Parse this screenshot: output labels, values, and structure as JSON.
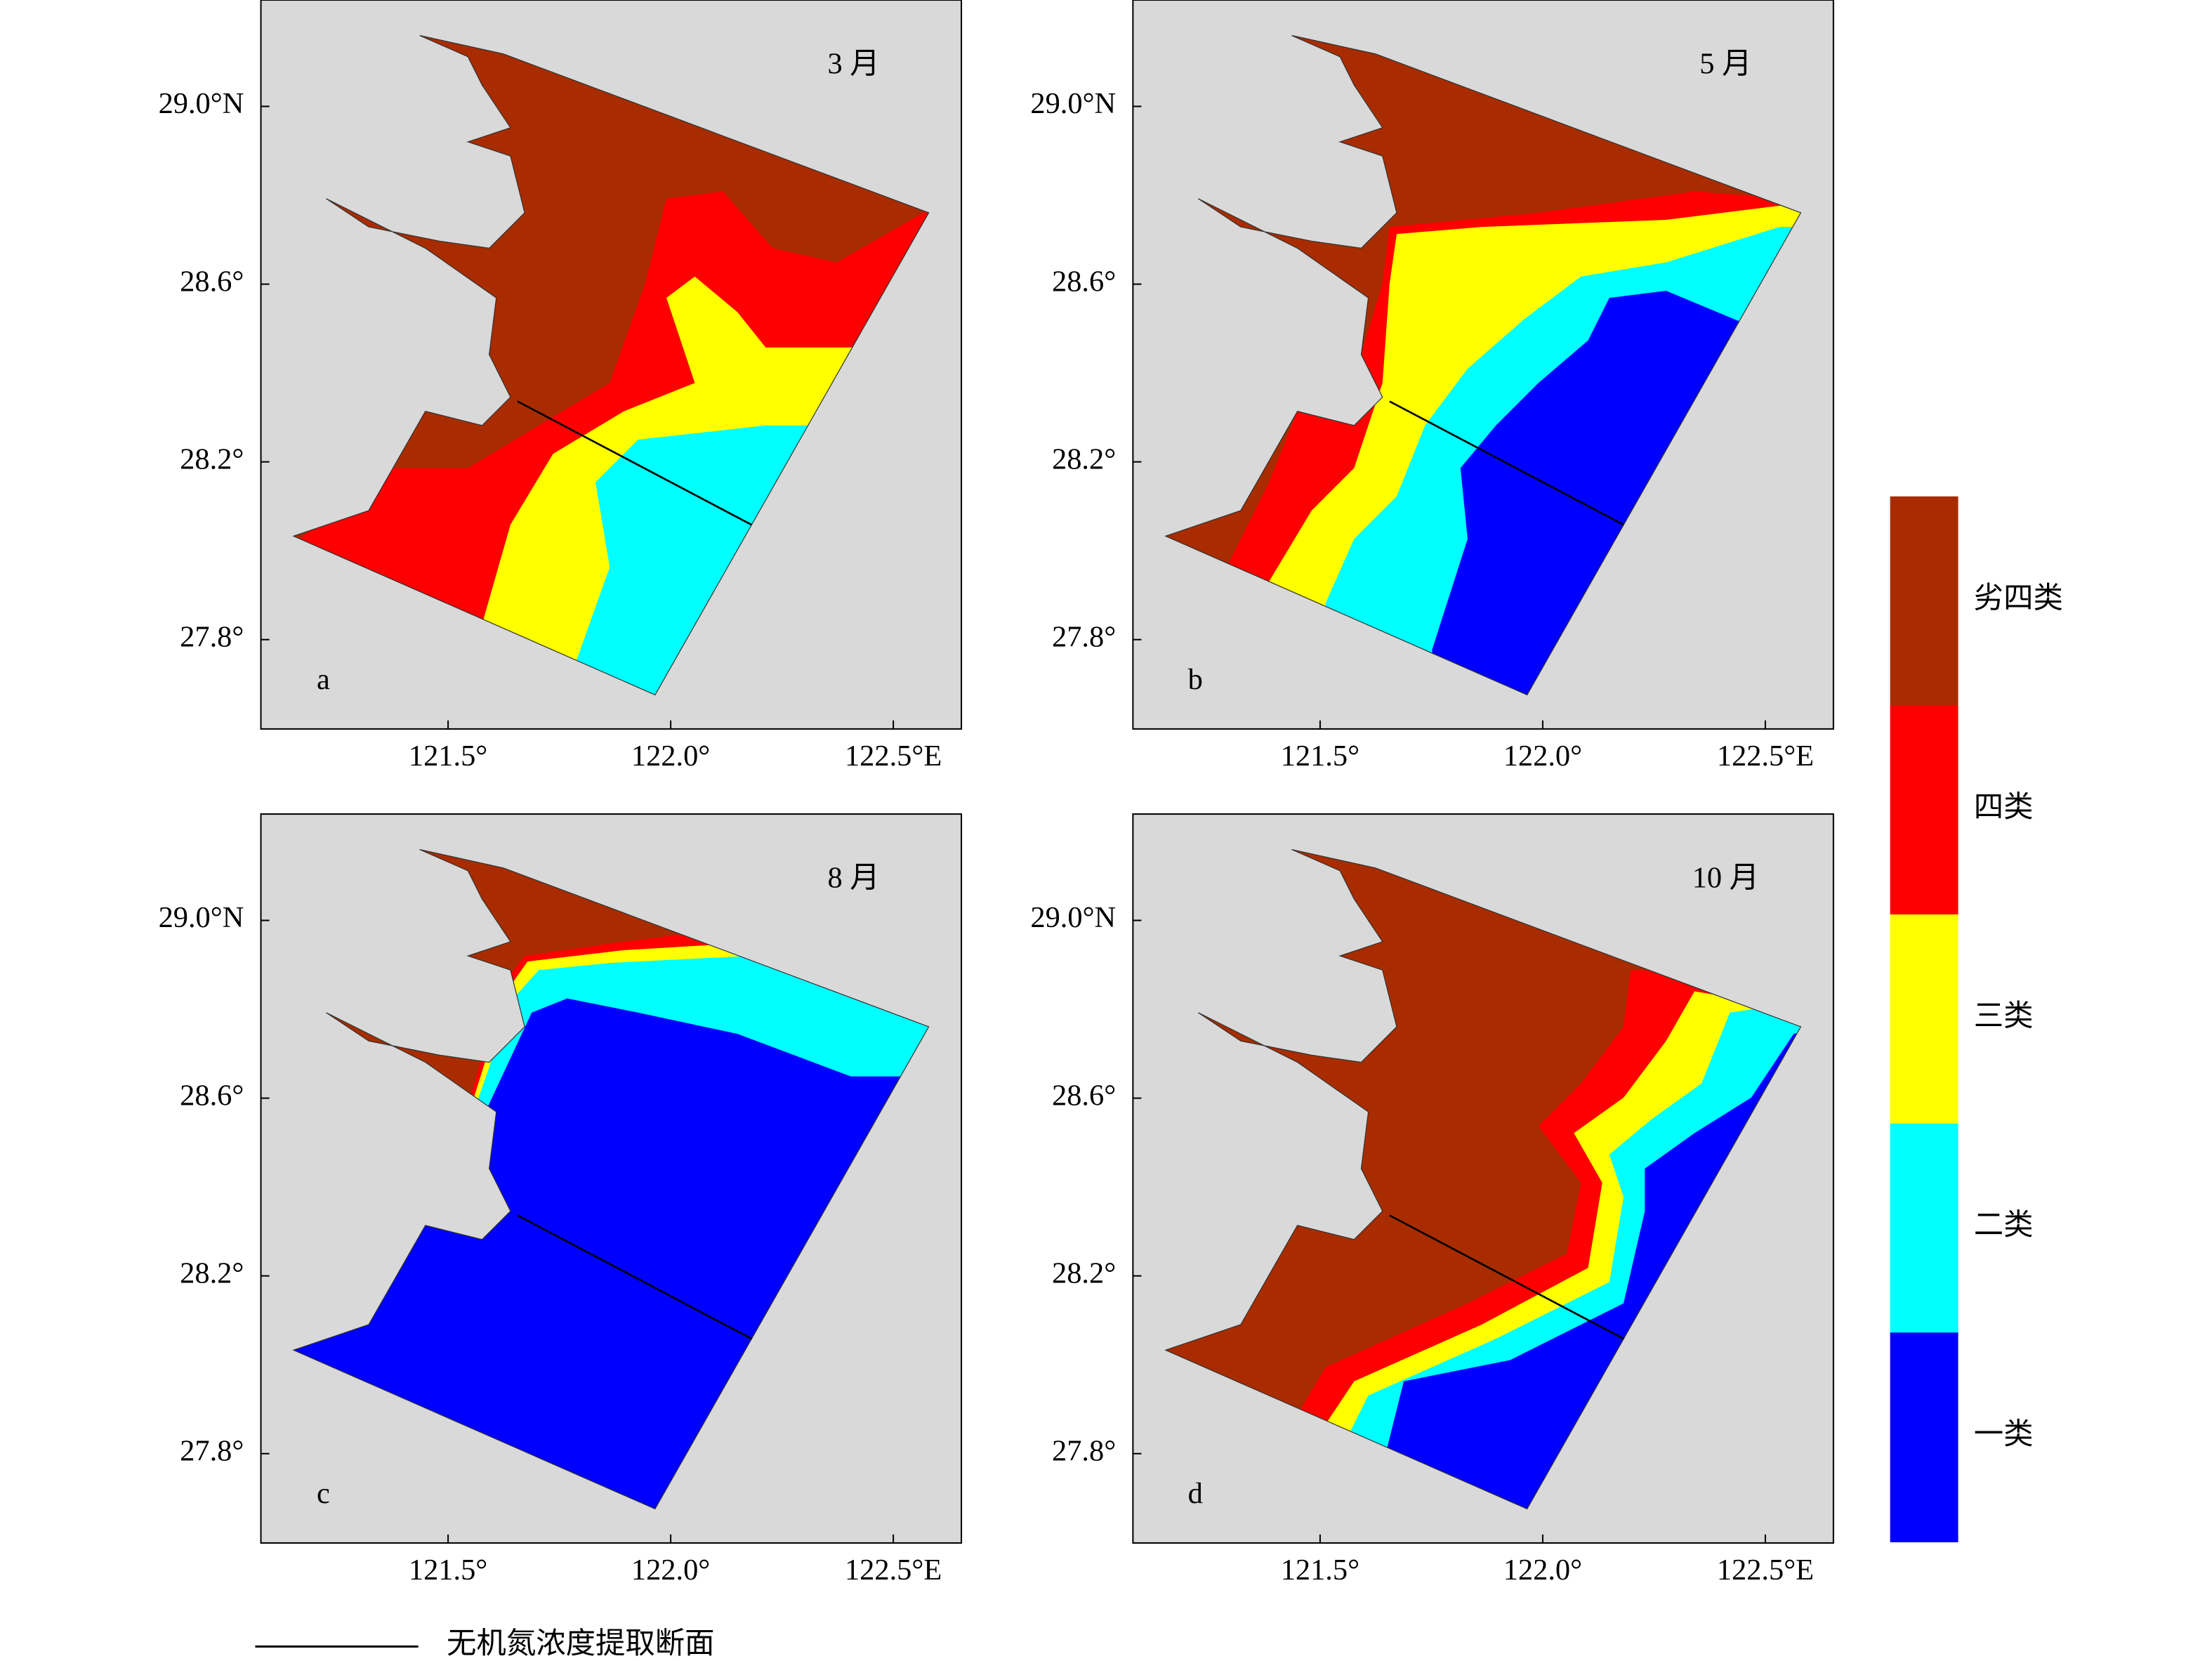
{
  "panels": [
    {
      "month": "3 月",
      "letter": "a"
    },
    {
      "month": "5 月",
      "letter": "b"
    },
    {
      "month": "8 月",
      "letter": "c"
    },
    {
      "month": "10 月",
      "letter": "d"
    }
  ],
  "lat_ticks": [
    {
      "value": 29.0,
      "label": "29.0°N"
    },
    {
      "value": 28.6,
      "label": "28.6°"
    },
    {
      "value": 28.2,
      "label": "28.2°"
    },
    {
      "value": 27.8,
      "label": "27.8°"
    }
  ],
  "lon_ticks": [
    {
      "value": 121.5,
      "label": "121.5°"
    },
    {
      "value": 122.0,
      "label": "122.0°"
    },
    {
      "value": 122.5,
      "label": "122.5°E"
    }
  ],
  "legend": {
    "classes": [
      {
        "label": "劣四类",
        "color": "#a82c00"
      },
      {
        "label": "四类",
        "color": "#ff0000"
      },
      {
        "label": "三类",
        "color": "#ffff00"
      },
      {
        "label": "二类",
        "color": "#00ffff"
      },
      {
        "label": "一类",
        "color": "#0000ff"
      }
    ]
  },
  "section_line": {
    "label": "无机氮浓度提取断面"
  }
}
